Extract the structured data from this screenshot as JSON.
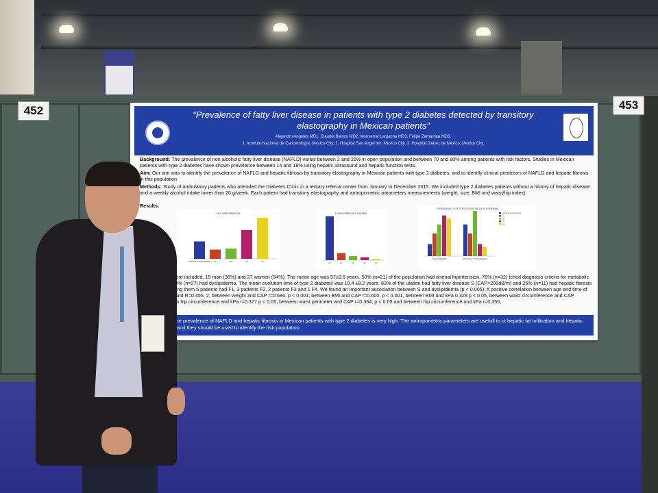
{
  "booth_numbers": {
    "left": "452",
    "right": "453"
  },
  "poster": {
    "title": "“Prevalence of fatty liver disease in patients with type 2 diabetes detected by transitory elastography in Mexican patients”",
    "authors": "Alejandro Angeles MD1, Claudia Blanco MD2, Monserrat Largacha MD3, Felipe Zamarripa MD3.",
    "affiliations": "1. Instituto Nacional de Cancerología, Mexico City, 2. Hospital San Angel Inn, Mexico City. 3. Hospital Juárez de México, México City.",
    "background_label": "Background:",
    "background": "The prevalence of non alcoholic fatty liver disease (NAFLD) varies between 2 and 25% in open population and between 70 and 80% among patients with risk factors. Studies in Mexican patients with type 2 diabetes have shown prevalence between 14 and 18% using hepatic ultrasound and hepatic function tests.",
    "aim_label": "Aim:",
    "aim": "Our aim was to identify the prevalence of NAFLD and hepatic fibrosis by transitory elastography in Mexican patients with type 2 diabetes, and to identify clinical predictors of NAFLD and hepatic fibrosis in this population",
    "methods_label": "Methods:",
    "methods": "Study of ambulatory patients who attended the Diabetes Clinic in a tertiary referral center from January to December 2015. We included type 2 diabetes patients without a history of hepatic disease and a weekly alcohol intake lower than 20 g/week. Each patient had transitory elastography and antropometric parameters measurements (weight, size, BMI and waist/hip index).",
    "results_label": "Results:",
    "results": "patients were included, 15 man (36%) and 27 women (64%). The mean age was 57±9.5 years. 50% (n=21) of the population had arterial hipertension, 76% (n=32) tched diagnosis criteria for metabolic syndrome and 64% (n=27) had dyslipidemia. The mean evolution time of type 2 diabetes was 10.4 ±8.2 years. 83% of the ulation had fatty liver disease S (CAP>200dB/m) and 26% (n=11) had hepatic fibrosis (E>6.2kPa); among them 5 patients had F1, 3 patients F2, 2 patients F3 and 1 F4. We found an important association between S and dyslipidemia (p < 0.005). A positive correlation between age and time of evolution was found R=0.455, 2; between weight and CAP r=0.686, p < 0.001; between BMI and CAP r=0.600, p < 0.001, between BMI and kPa 0.328 p < 0.05, between waist circumference and CAP p=0.001; between hip circumference and kPa r=0.377 p < 0.05; between waist perimeter and CAP r=0.364, p < 0.05 and between hip circumference and kPa r=0.356,",
    "conclusion": "usion: The prevalence of NAFLD and hepatic fibrosis in Mexican patients with type 2 diabetes is very high. The antropometric parameters are usefull to ct hepatic fat infiltration and hepatic fibrosis, and they should be used to identify the risk population.",
    "chart1_title": "FAT INFILTRATION",
    "chart2_title": "LIVER FIBROSIS GRADE",
    "chart3_title": "FREQUENCY OF STEATOSIS IN DYSLIPIDEMIA"
  },
  "chart_data": [
    {
      "type": "bar",
      "title": "FAT INFILTRATION",
      "categories": [
        "WITHOUT STEATOSIS",
        "S1",
        "S2",
        "S3",
        "S4"
      ],
      "values": [
        17,
        9,
        10,
        28,
        40
      ],
      "colors": [
        "#2b3aa0",
        "#c8401f",
        "#6fb72c",
        "#b41f6c",
        "#e9d21c"
      ]
    },
    {
      "type": "bar",
      "title": "LIVER FIBROSIS GRADE",
      "categories": [
        "F0",
        "F1",
        "F2",
        "F3",
        "F4"
      ],
      "values": [
        74,
        12,
        7,
        5,
        2
      ],
      "colors": [
        "#2b3aa0",
        "#c8401f",
        "#6fb72c",
        "#b41f6c",
        "#e9d21c"
      ]
    },
    {
      "type": "bar",
      "title": "FREQUENCY OF STEATOSIS IN DYSLIPIDEMIA",
      "categories": [
        "DYSLIPIDEMIA",
        "WITHOUT DYSLIPIDEMIA"
      ],
      "series": [
        {
          "name": "WITHOUT STEATOSIS",
          "color": "#2b3aa0",
          "values": [
            8,
            21
          ]
        },
        {
          "name": "S1",
          "color": "#c8401f",
          "values": [
            15,
            15
          ]
        },
        {
          "name": "S2",
          "color": "#6fb72c",
          "values": [
            21,
            30
          ]
        },
        {
          "name": "S3",
          "color": "#b41f6c",
          "values": [
            27,
            8
          ]
        },
        {
          "name": "S4",
          "color": "#e9d21c",
          "values": [
            25,
            6
          ]
        }
      ]
    }
  ]
}
